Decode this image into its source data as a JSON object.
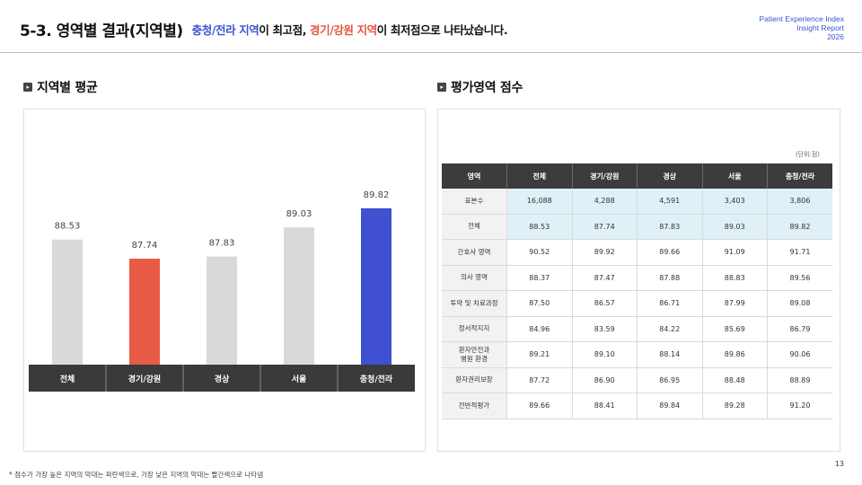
{
  "header": {
    "title": "5-3. 영역별 결과(지역별)",
    "subtitle_highlight1": "충청/전라 지역",
    "subtitle_text1": "이 최고점, ",
    "subtitle_highlight2": "경기/강원 지역",
    "subtitle_text2": "이 최저점으로 나타났습니다.",
    "report_line1": "Patient Experience Index",
    "report_line2": "Insight Report",
    "report_line3": "2026"
  },
  "left_section": {
    "title": "지역별 평균"
  },
  "right_section": {
    "title": "평가영역 점수",
    "unit_note": "(단위:점)"
  },
  "chart_data": {
    "type": "bar",
    "categories": [
      "전체",
      "경기/강원",
      "경상",
      "서울",
      "충청/전라"
    ],
    "values": [
      88.53,
      87.74,
      87.83,
      89.03,
      89.82
    ],
    "value_labels": [
      "88.53",
      "87.74",
      "87.83",
      "89.03",
      "89.82"
    ],
    "colors": [
      "#d9d9d9",
      "#e85c45",
      "#d9d9d9",
      "#d9d9d9",
      "#3f51d0"
    ],
    "title": "",
    "xlabel": "",
    "ylabel": ""
  },
  "table": {
    "headers": [
      "영역",
      "전체",
      "경기/강원",
      "경상",
      "서울",
      "충청/전라"
    ],
    "rows": [
      {
        "label": "표본수",
        "values": [
          "16,088",
          "4,288",
          "4,591",
          "3,403",
          "3,806"
        ]
      },
      {
        "label": "전체",
        "values": [
          "88.53",
          "87.74",
          "87.83",
          "89.03",
          "89.82"
        ]
      },
      {
        "label": "간호사 영역",
        "values": [
          "90.52",
          "89.92",
          "89.66",
          "91.09",
          "91.71"
        ]
      },
      {
        "label": "의사 영역",
        "values": [
          "88.37",
          "87.47",
          "87.88",
          "88.83",
          "89.56"
        ]
      },
      {
        "label": "투약 및 치료과정",
        "values": [
          "87.50",
          "86.57",
          "86.71",
          "87.99",
          "89.08"
        ]
      },
      {
        "label": "정서적지지",
        "values": [
          "84.96",
          "83.59",
          "84.22",
          "85.69",
          "86.79"
        ]
      },
      {
        "label": "환자안전과\n병원 환경",
        "values": [
          "89.21",
          "89.10",
          "88.14",
          "89.86",
          "90.06"
        ]
      },
      {
        "label": "환자권리보장",
        "values": [
          "87.72",
          "86.90",
          "86.95",
          "88.48",
          "88.89"
        ]
      },
      {
        "label": "전반적평가",
        "values": [
          "89.66",
          "88.41",
          "89.84",
          "89.28",
          "91.20"
        ]
      }
    ]
  },
  "footnote": "* 점수가 가장 높은 지역의 막대는 파란색으로, 가장 낮은 지역의 막대는 빨간색으로 나타냄",
  "page_number": "13"
}
